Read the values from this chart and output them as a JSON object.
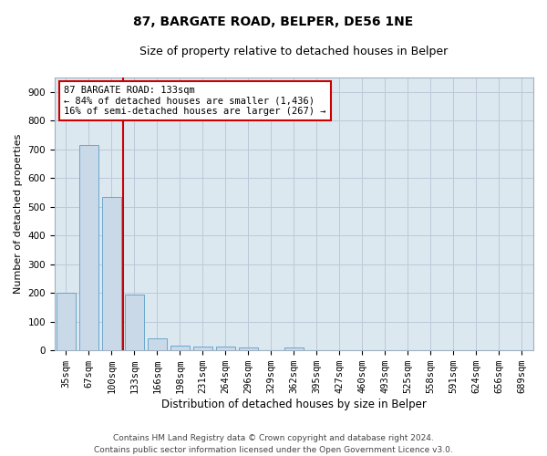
{
  "title": "87, BARGATE ROAD, BELPER, DE56 1NE",
  "subtitle": "Size of property relative to detached houses in Belper",
  "xlabel": "Distribution of detached houses by size in Belper",
  "ylabel": "Number of detached properties",
  "categories": [
    "35sqm",
    "67sqm",
    "100sqm",
    "133sqm",
    "166sqm",
    "198sqm",
    "231sqm",
    "264sqm",
    "296sqm",
    "329sqm",
    "362sqm",
    "395sqm",
    "427sqm",
    "460sqm",
    "493sqm",
    "525sqm",
    "558sqm",
    "591sqm",
    "624sqm",
    "656sqm",
    "689sqm"
  ],
  "values": [
    202,
    714,
    534,
    193,
    42,
    18,
    14,
    12,
    9,
    0,
    10,
    0,
    0,
    0,
    0,
    0,
    0,
    0,
    0,
    0,
    0
  ],
  "bar_color": "#c9d9e8",
  "bar_edge_color": "#5a9ec8",
  "vline_color": "#cc0000",
  "vline_index": 3,
  "annotation_text": "87 BARGATE ROAD: 133sqm\n← 84% of detached houses are smaller (1,436)\n16% of semi-detached houses are larger (267) →",
  "annotation_box_color": "#ffffff",
  "annotation_box_edge": "#cc0000",
  "ylim": [
    0,
    950
  ],
  "yticks": [
    0,
    100,
    200,
    300,
    400,
    500,
    600,
    700,
    800,
    900
  ],
  "grid_color": "#c0c8d8",
  "bg_color": "#dce8f0",
  "footer": "Contains HM Land Registry data © Crown copyright and database right 2024.\nContains public sector information licensed under the Open Government Licence v3.0.",
  "title_fontsize": 10,
  "subtitle_fontsize": 9,
  "xlabel_fontsize": 8.5,
  "ylabel_fontsize": 8,
  "tick_fontsize": 7.5,
  "footer_fontsize": 6.5,
  "annotation_fontsize": 7.5
}
